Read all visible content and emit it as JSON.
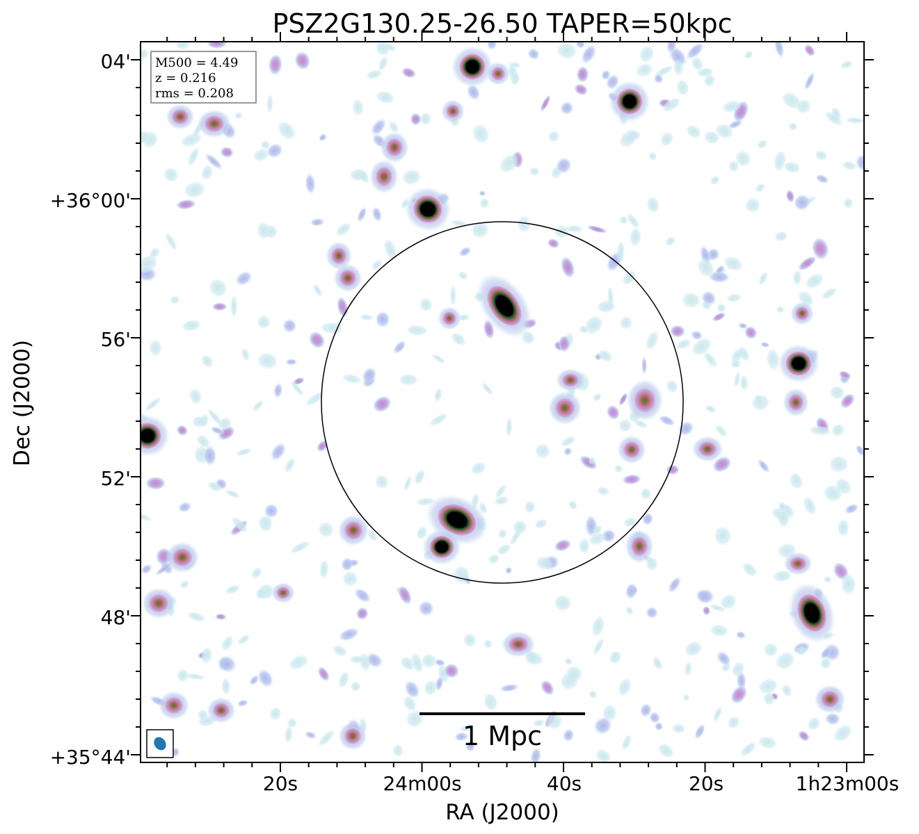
{
  "title": "PSZ2G130.25-26.50 TAPER=50kpc",
  "x_axis": {
    "label": "RA (J2000)",
    "ticks": [
      "20s",
      "24m00s",
      "40s",
      "20s",
      "1h23m00s"
    ]
  },
  "y_axis": {
    "label": "Dec (J2000)",
    "ticks": [
      "04'",
      "+36°00'",
      "56'",
      "52'",
      "48'",
      "+35°44'"
    ]
  },
  "info_box": {
    "mass": "M500 = 4.49",
    "redshift": "z = 0.216",
    "rms": "rms = 0.208"
  },
  "scale_bar": {
    "label": "1 Mpc"
  },
  "colors": {
    "background": "#ffffff",
    "noise_cyan": "#c5e6ec",
    "noise_blue": "#b3bdee",
    "emission_pink": "#c993cf",
    "emission_mauve": "#c77a92",
    "emission_brown": "#a8654f",
    "emission_green": "#2e6a3e",
    "core": "#000000",
    "beam": "#1f77b4"
  },
  "icons": {
    "beam_marker": "beam-ellipse-icon"
  }
}
